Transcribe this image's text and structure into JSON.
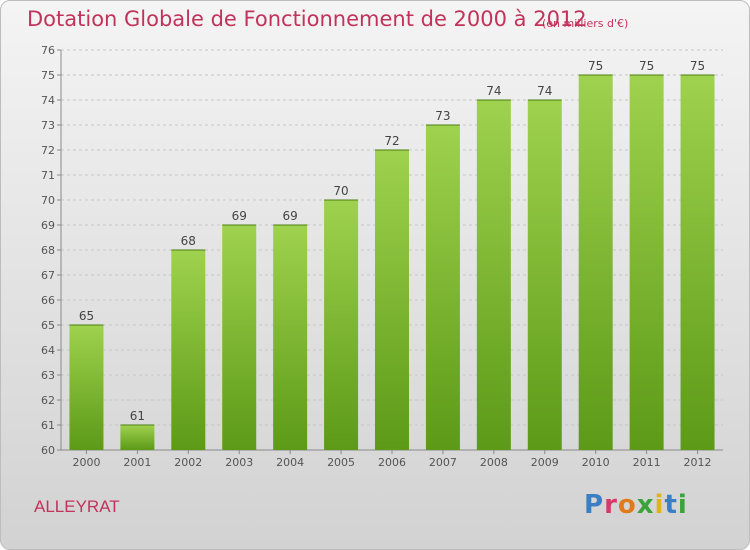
{
  "header": {
    "title": "Dotation Globale de Fonctionnement de 2000 à 2012",
    "unit": "(en milliers d'€)"
  },
  "footer": {
    "commune": "ALLEYRAT",
    "brand_letters": [
      "P",
      "r",
      "o",
      "x",
      "i",
      "t",
      "i"
    ]
  },
  "colors": {
    "bar_top": "#9fd24e",
    "bar_bottom": "#5c9a17",
    "title": "#c2335b"
  },
  "chart_data": {
    "type": "bar",
    "categories": [
      "2000",
      "2001",
      "2002",
      "2003",
      "2004",
      "2005",
      "2006",
      "2007",
      "2008",
      "2009",
      "2010",
      "2011",
      "2012"
    ],
    "values": [
      65,
      61,
      68,
      69,
      69,
      70,
      72,
      73,
      74,
      74,
      75,
      75,
      75
    ],
    "data_labels": [
      "65",
      "61",
      "68",
      "69",
      "69",
      "70",
      "72",
      "73",
      "74",
      "74",
      "75",
      "75",
      "75"
    ],
    "yticks": [
      "60",
      "61",
      "62",
      "63",
      "64",
      "65",
      "66",
      "67",
      "68",
      "69",
      "70",
      "71",
      "72",
      "73",
      "74",
      "75",
      "76"
    ],
    "ylim": [
      60,
      76
    ],
    "grid": true,
    "title": "Dotation Globale de Fonctionnement de 2000 à 2012",
    "ylabel": "(en milliers d'€)",
    "xlabel": ""
  }
}
